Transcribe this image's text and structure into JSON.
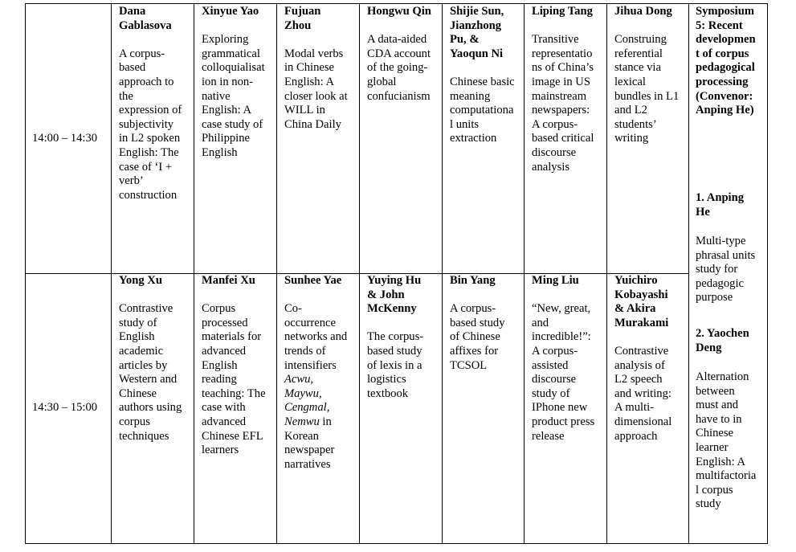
{
  "times": [
    "14:00 – 14:30",
    "14:30 – 15:00"
  ],
  "rows": [
    [
      {
        "name": "Dana\nGablasova",
        "title": [
          {
            "text": "A corpus-\nbased\napproach to\nthe\nexpression of\nsubjectivity\nin L2 spoken\nEnglish: The\ncase of ‘I +\nverb’\nconstruction"
          }
        ]
      },
      {
        "name": "Xinyue Yao",
        "title": [
          {
            "text": "Exploring\ngrammatical\ncolloquialisat\nion in non-\nnative\nEnglish: A\ncase study of\nPhilippine\nEnglish"
          }
        ]
      },
      {
        "name": "Fujuan\nZhou",
        "title": [
          {
            "text": "Modal verbs\nin Chinese\nEnglish: A\ncloser look at\nWILL in\nChina Daily"
          }
        ]
      },
      {
        "name": "Hongwu Qin",
        "title": [
          {
            "text": "A data-aided\nCDA account\nof the going-\nglobal\nconfucianism"
          }
        ]
      },
      {
        "name": "Shijie Sun,\nJianzhong\nPu, &\nYaoqun Ni",
        "title": [
          {
            "text": "Chinese basic\nmeaning\ncomputationa\nl units\nextraction"
          }
        ]
      },
      {
        "name": "Liping Tang",
        "title": [
          {
            "text": "Transitive\nrepresentatio\nns of China’s\nimage in US\nmainstream\nnewspapers:\nA corpus-\nbased critical\ndiscourse\nanalysis"
          }
        ]
      },
      {
        "name": "Jihua Dong",
        "title": [
          {
            "text": "Construing\nreferential\nstance via\nlexical\nbundles in L1\nand L2\nstudents’\nwriting"
          }
        ]
      }
    ],
    [
      {
        "name": "Yong Xu",
        "title": [
          {
            "text": "Contrastive\nstudy of\nEnglish\nacademic\narticles by\nWestern and\nChinese\nauthors using\ncorpus\ntechniques"
          }
        ]
      },
      {
        "name": "Manfei Xu",
        "title": [
          {
            "text": "Corpus\nprocessed\nmaterials for\nadvanced\nEnglish\nreading\nteaching: The\ncase with\nadvanced\nChinese EFL\nlearners"
          }
        ]
      },
      {
        "name": "Sunhee Yae",
        "title": [
          {
            "text": "Co-\noccurrence\nnetworks and\ntrends of\nintensifiers\n"
          },
          {
            "text": "Acwu,\nMaywu,\nCengmal,\nNemwu",
            "italic": true
          },
          {
            "text": " in\nKorean\nnewspaper\nnarratives"
          }
        ]
      },
      {
        "name": "Yuying Hu\n & John\nMcKenny",
        "title": [
          {
            "text": "The corpus-\nbased study\nof lexis in a\nlogistics\ntextbook"
          }
        ]
      },
      {
        "name": "Bin Yang",
        "title": [
          {
            "text": "A corpus-\nbased study\nof Chinese\naffixes for\nTCSOL"
          }
        ]
      },
      {
        "name": "Ming Liu",
        "title": [
          {
            "text": "“New, great,\nand\nincredible!”:\nA corpus-\nassisted\ndiscourse\nstudy of\nIPhone new\nproduct press\nrelease"
          }
        ]
      },
      {
        "name": "Yuichiro\nKobayashi\n& Akira\nMurakami",
        "title": [
          {
            "text": "Contrastive\nanalysis of\nL2 speech\nand writing:\nA multi-\ndimensional\napproach"
          }
        ]
      }
    ]
  ],
  "symposium": {
    "heading": "Symposium\n5: Recent\ndevelopmen\nt of corpus\npedagogical\nprocessing\n(Convenor:\nAnping He)",
    "talks": [
      {
        "speaker": "1. Anping\nHe",
        "title": "Multi-type\nphrasal units\nstudy for\npedagogic\npurpose"
      },
      {
        "speaker": "2. Yaochen\nDeng",
        "title": "Alternation\nbetween\nmust and\nhave to in\nChinese\nlearner\nEnglish: A\nmultifactoria\nl corpus\nstudy"
      }
    ]
  }
}
